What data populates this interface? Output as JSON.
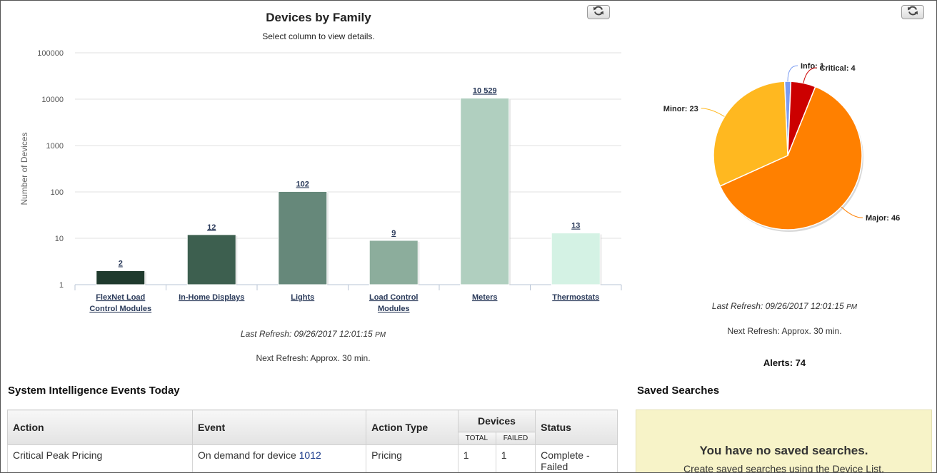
{
  "devices_chart": {
    "title": "Devices by Family",
    "subtitle": "Select column to view details.",
    "ylabel": "Number of Devices",
    "last_refresh_prefix": "Last Refresh: 09/26/2017 12:01:15 ",
    "last_refresh_ampm": "PM",
    "next_refresh": "Next Refresh: Approx. 30 min."
  },
  "alerts_chart": {
    "last_refresh_prefix": "Last Refresh: 09/26/2017 12:01:15 ",
    "last_refresh_ampm": "PM",
    "next_refresh": "Next Refresh: Approx. 30 min.",
    "alerts_total": "Alerts: 74"
  },
  "refresh_icon": "refresh-icon",
  "events": {
    "title": "System Intelligence Events Today",
    "headers": {
      "action": "Action",
      "event": "Event",
      "action_type": "Action Type",
      "devices": "Devices",
      "total": "TOTAL",
      "failed": "FAILED",
      "status": "Status"
    },
    "rows": [
      {
        "action": "Critical Peak Pricing",
        "event_text": "On demand for device ",
        "event_link": "1012",
        "action_type": "Pricing",
        "total": "1",
        "failed": "1",
        "status": "Complete - Failed"
      }
    ]
  },
  "saved_searches": {
    "title": "Saved Searches",
    "empty_title": "You have no saved searches.",
    "empty_sub": "Create saved searches using the Device List."
  },
  "chart_data": [
    {
      "type": "bar",
      "title": "Devices by Family",
      "subtitle": "Select column to view details.",
      "ylabel": "Number of Devices",
      "yscale": "log",
      "ylim": [
        1,
        100000
      ],
      "yticks": [
        "1",
        "10",
        "100",
        "1000",
        "10000",
        "100000"
      ],
      "categories": [
        "FlexNet Load Control Modules",
        "In-Home Displays",
        "Lights",
        "Load Control Modules",
        "Meters",
        "Thermostats"
      ],
      "values": [
        2,
        12,
        102,
        9,
        10529,
        13
      ],
      "data_labels": [
        "2",
        "12",
        "102",
        "9",
        "10 529",
        "13"
      ],
      "colors": [
        "#1f3a2d",
        "#3d5f4f",
        "#66887a",
        "#8cad9c",
        "#b0cfbf",
        "#d4f2e4"
      ],
      "grid": true
    },
    {
      "type": "pie",
      "categories": [
        "Info",
        "Critical",
        "Major",
        "Minor"
      ],
      "values": [
        1,
        4,
        46,
        23
      ],
      "labels": [
        "Info: 1",
        "Critical: 4",
        "Major: 46",
        "Minor: 23"
      ],
      "colors": [
        "#7b9cf2",
        "#cc0000",
        "#ff8000",
        "#ffb820"
      ]
    }
  ]
}
